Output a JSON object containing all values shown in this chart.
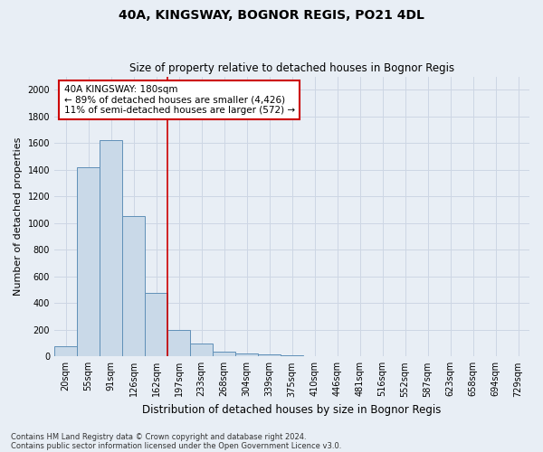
{
  "title1": "40A, KINGSWAY, BOGNOR REGIS, PO21 4DL",
  "title2": "Size of property relative to detached houses in Bognor Regis",
  "xlabel": "Distribution of detached houses by size in Bognor Regis",
  "ylabel": "Number of detached properties",
  "categories": [
    "20sqm",
    "55sqm",
    "91sqm",
    "126sqm",
    "162sqm",
    "197sqm",
    "233sqm",
    "268sqm",
    "304sqm",
    "339sqm",
    "375sqm",
    "410sqm",
    "446sqm",
    "481sqm",
    "516sqm",
    "552sqm",
    "587sqm",
    "623sqm",
    "658sqm",
    "694sqm",
    "729sqm"
  ],
  "values": [
    75,
    1420,
    1620,
    1050,
    480,
    200,
    100,
    35,
    25,
    18,
    12,
    0,
    0,
    0,
    0,
    0,
    0,
    0,
    0,
    0,
    0
  ],
  "bar_color": "#c9d9e8",
  "bar_edge_color": "#6090b8",
  "vline_color": "#cc0000",
  "vline_pos": 4.5,
  "annotation_text": "40A KINGSWAY: 180sqm\n← 89% of detached houses are smaller (4,426)\n11% of semi-detached houses are larger (572) →",
  "annotation_box_color": "#ffffff",
  "annotation_box_edge": "#cc0000",
  "footer1": "Contains HM Land Registry data © Crown copyright and database right 2024.",
  "footer2": "Contains public sector information licensed under the Open Government Licence v3.0.",
  "ylim": [
    0,
    2100
  ],
  "yticks": [
    0,
    200,
    400,
    600,
    800,
    1000,
    1200,
    1400,
    1600,
    1800,
    2000
  ],
  "grid_color": "#cdd6e4",
  "bg_color": "#e8eef5",
  "title1_fontsize": 10,
  "title2_fontsize": 8.5,
  "ylabel_fontsize": 8,
  "xlabel_fontsize": 8.5,
  "tick_fontsize": 7,
  "ann_fontsize": 7.5,
  "footer_fontsize": 6
}
